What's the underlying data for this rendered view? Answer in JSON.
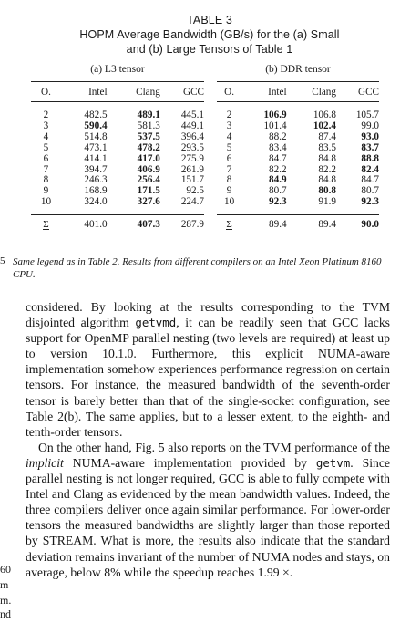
{
  "table": {
    "number": "TABLE 3",
    "title_line1": "HOPM Average Bandwidth (GB/s) for the (a) Small",
    "title_line2": "and (b) Large Tensors of Table 1",
    "subtables": [
      {
        "caption": "(a) L3 tensor",
        "columns": [
          "O.",
          "Intel",
          "Clang",
          "GCC"
        ],
        "rows": [
          [
            "2",
            "482.5",
            "489.1",
            "445.1"
          ],
          [
            "3",
            "590.4",
            "581.3",
            "449.1"
          ],
          [
            "4",
            "514.8",
            "537.5",
            "396.4"
          ],
          [
            "5",
            "473.1",
            "478.2",
            "293.5"
          ],
          [
            "6",
            "414.1",
            "417.0",
            "275.9"
          ],
          [
            "7",
            "394.7",
            "406.9",
            "261.9"
          ],
          [
            "8",
            "246.3",
            "256.4",
            "151.7"
          ],
          [
            "9",
            "168.9",
            "171.5",
            "92.5"
          ],
          [
            "10",
            "324.0",
            "327.6",
            "224.7"
          ]
        ],
        "bold": [
          [
            0,
            2
          ],
          [
            1,
            1
          ],
          [
            2,
            2
          ],
          [
            3,
            2
          ],
          [
            4,
            2
          ],
          [
            5,
            2
          ],
          [
            6,
            2
          ],
          [
            7,
            2
          ],
          [
            8,
            2
          ]
        ],
        "sum_label": "Σ",
        "sum": [
          "401.0",
          "407.3",
          "287.9"
        ],
        "sum_bold": [
          1
        ]
      },
      {
        "caption": "(b) DDR tensor",
        "columns": [
          "O.",
          "Intel",
          "Clang",
          "GCC"
        ],
        "rows": [
          [
            "2",
            "106.9",
            "106.8",
            "105.7"
          ],
          [
            "3",
            "101.4",
            "102.4",
            "99.0"
          ],
          [
            "4",
            "88.2",
            "87.4",
            "93.0"
          ],
          [
            "5",
            "83.4",
            "83.5",
            "83.7"
          ],
          [
            "6",
            "84.7",
            "84.8",
            "88.8"
          ],
          [
            "7",
            "82.2",
            "82.2",
            "82.4"
          ],
          [
            "8",
            "84.9",
            "84.8",
            "84.7"
          ],
          [
            "9",
            "80.7",
            "80.8",
            "80.7"
          ],
          [
            "10",
            "92.3",
            "91.9",
            "92.3"
          ]
        ],
        "bold": [
          [
            0,
            1
          ],
          [
            1,
            2
          ],
          [
            2,
            3
          ],
          [
            3,
            3
          ],
          [
            4,
            3
          ],
          [
            5,
            3
          ],
          [
            6,
            1
          ],
          [
            7,
            2
          ],
          [
            8,
            1
          ],
          [
            8,
            3
          ]
        ],
        "sum_label": "Σ",
        "sum": [
          "89.4",
          "89.4",
          "90.0"
        ],
        "sum_bold": [
          2
        ]
      }
    ],
    "legend": "Same legend as in Table 2. Results from different compilers on an Intel Xeon Platinum 8160 CPU."
  },
  "margin_marks": {
    "top": "5",
    "frag1": "60",
    "frag2": "m",
    "frag3": "m.",
    "frag4": "nd"
  },
  "body": {
    "p1": {
      "pre_code": "considered. By looking at the results corresponding to the TVM disjointed algorithm",
      "code": "getvmd",
      "post_code": ", it can be readily seen that GCC lacks support for OpenMP parallel nesting (two levels are required) at least up to version 10.1.0. Furthermore, this explicit NUMA-aware implementation somehow experiences performance regression on certain tensors. For instance, the measured bandwidth of the seventh-order tensor is barely better than that of the single-socket configuration, see Table 2(b). The same applies, but to a lesser extent, to the eighth- and tenth-order tensors."
    },
    "p2": {
      "t1": "On the other hand, Fig. 5 also reports on the TVM performance of the",
      "em": "implicit",
      "t2": "NUMA-aware implementation provided by",
      "code": "getvm",
      "t3": ". Since parallel nesting is not longer required, GCC is able to fully compete with Intel and Clang as evidenced by the mean bandwidth values. Indeed, the three compilers deliver once again similar performance. For lower-order tensors the measured bandwidths are slightly larger than those reported by STREAM. What is more, the results also indicate that the standard deviation remains invariant of the number of NUMA nodes and stays, on average, below 8% while the speedup reaches 1.99 ×."
    }
  }
}
